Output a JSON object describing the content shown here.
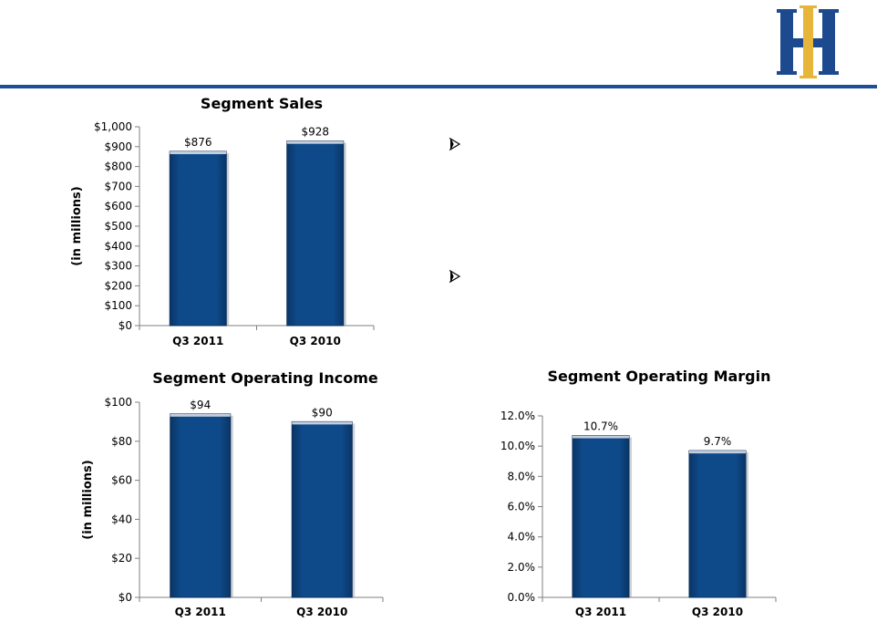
{
  "colors": {
    "accent": "#1f4e98",
    "bar": "#0e4a8a",
    "bar_edge": "#0a2f5e",
    "logo_blue": "#1d4a8f",
    "logo_gold": "#e6b53a"
  },
  "logo": {
    "name": "HII monogram"
  },
  "bullets": [
    {
      "icon": "arrow-bullet-icon",
      "text": ""
    },
    {
      "icon": "arrow-bullet-icon",
      "text": ""
    }
  ],
  "chart_data": [
    {
      "id": "sales",
      "type": "bar",
      "title": "Segment Sales",
      "ylabel": "(in millions)",
      "categories": [
        "Q3 2011",
        "Q3 2010"
      ],
      "values": [
        876,
        928
      ],
      "data_labels": [
        "$876",
        "$928"
      ],
      "ylim": [
        0,
        1000
      ],
      "yticks": [
        {
          "value": 0,
          "label": "$0"
        },
        {
          "value": 100,
          "label": "$100"
        },
        {
          "value": 200,
          "label": "$200"
        },
        {
          "value": 300,
          "label": "$300"
        },
        {
          "value": 400,
          "label": "$400"
        },
        {
          "value": 500,
          "label": "$500"
        },
        {
          "value": 600,
          "label": "$600"
        },
        {
          "value": 700,
          "label": "$700"
        },
        {
          "value": 800,
          "label": "$800"
        },
        {
          "value": 900,
          "label": "$900"
        },
        {
          "value": 1000,
          "label": "$1,000"
        }
      ],
      "grid": false
    },
    {
      "id": "income",
      "type": "bar",
      "title": "Segment Operating Income",
      "ylabel": "(in millions)",
      "categories": [
        "Q3 2011",
        "Q3 2010"
      ],
      "values": [
        94,
        90
      ],
      "data_labels": [
        "$94",
        "$90"
      ],
      "ylim": [
        0,
        100
      ],
      "yticks": [
        {
          "value": 0,
          "label": "$0"
        },
        {
          "value": 20,
          "label": "$20"
        },
        {
          "value": 40,
          "label": "$40"
        },
        {
          "value": 60,
          "label": "$60"
        },
        {
          "value": 80,
          "label": "$80"
        },
        {
          "value": 100,
          "label": "$100"
        }
      ],
      "grid": false
    },
    {
      "id": "margin",
      "type": "bar",
      "title": "Segment Operating Margin",
      "ylabel": "",
      "categories": [
        "Q3 2011",
        "Q3 2010"
      ],
      "values": [
        10.7,
        9.7
      ],
      "data_labels": [
        "10.7%",
        "9.7%"
      ],
      "ylim": [
        0,
        12
      ],
      "yticks": [
        {
          "value": 0,
          "label": "0.0%"
        },
        {
          "value": 2,
          "label": "2.0%"
        },
        {
          "value": 4,
          "label": "4.0%"
        },
        {
          "value": 6,
          "label": "6.0%"
        },
        {
          "value": 8,
          "label": "8.0%"
        },
        {
          "value": 10,
          "label": "10.0%"
        },
        {
          "value": 12,
          "label": "12.0%"
        }
      ],
      "grid": false
    }
  ]
}
